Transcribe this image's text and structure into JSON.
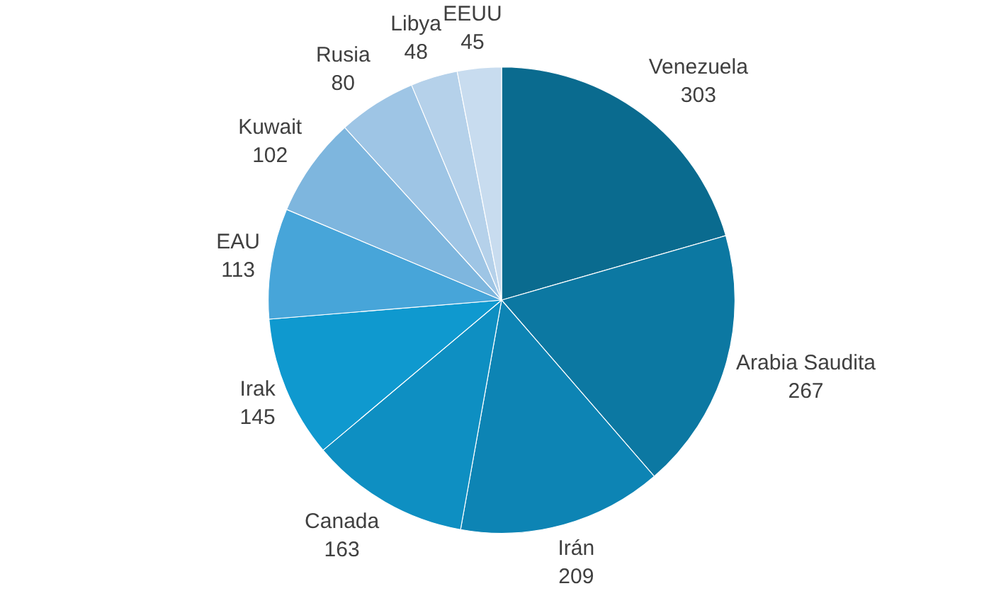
{
  "chart_data": {
    "type": "pie",
    "categories": [
      "Venezuela",
      "Arabia Saudita",
      "Irán",
      "Canada",
      "Irak",
      "EAU",
      "Kuwait",
      "Rusia",
      "Libya",
      "EEUU"
    ],
    "values": [
      303,
      267,
      209,
      163,
      145,
      113,
      102,
      80,
      48,
      45
    ],
    "colors": [
      "#0a6b8f",
      "#0c78a2",
      "#0d84b4",
      "#0e8fc2",
      "#0f99cf",
      "#47a5d9",
      "#7eb6de",
      "#9ec5e5",
      "#b5d1ea",
      "#c8dcef"
    ],
    "data_labels": true
  }
}
